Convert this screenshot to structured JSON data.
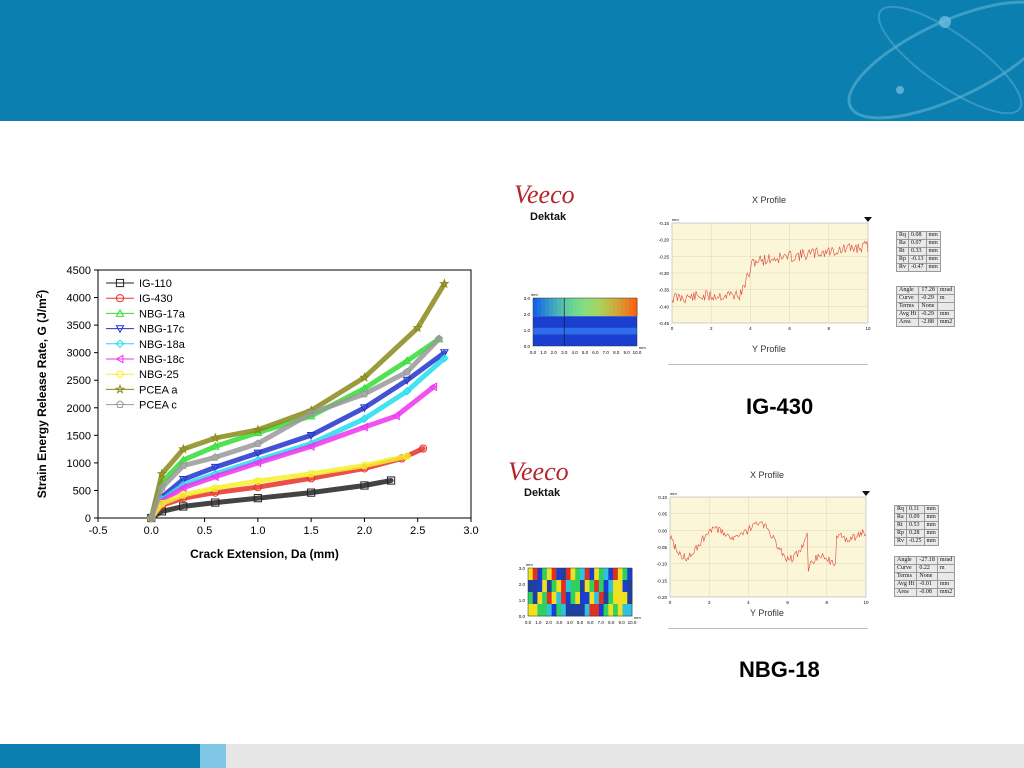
{
  "chart_data": {
    "type": "scatter",
    "xlabel": "Crack Extension, Da (mm)",
    "ylabel": "Strain Energy Release Rate, G (J/m",
    "ylabel_sup": "2",
    "ylabel_close": ")",
    "xlim": [
      -0.5,
      3.0
    ],
    "ylim": [
      0,
      4500
    ],
    "xticks": [
      "-0.5",
      "0.0",
      "0.5",
      "1.0",
      "1.5",
      "2.0",
      "2.5",
      "3.0"
    ],
    "yticks": [
      "0",
      "500",
      "1000",
      "1500",
      "2000",
      "2500",
      "3000",
      "3500",
      "4000",
      "4500"
    ],
    "legend_position": "top-left",
    "grid": false,
    "series": [
      {
        "name": "IG-110",
        "color": "#222222",
        "marker": "square",
        "x": [
          0,
          0.1,
          0.3,
          0.6,
          1.0,
          1.5,
          2.0,
          2.25
        ],
        "y": [
          0,
          120,
          210,
          280,
          360,
          460,
          590,
          680
        ]
      },
      {
        "name": "IG-430",
        "color": "#e8302a",
        "marker": "circle",
        "x": [
          0,
          0.1,
          0.3,
          0.6,
          1.0,
          1.5,
          2.0,
          2.35,
          2.55
        ],
        "y": [
          0,
          230,
          360,
          460,
          560,
          720,
          900,
          1080,
          1260
        ]
      },
      {
        "name": "NBG-17a",
        "color": "#33dd33",
        "marker": "triangle-up",
        "x": [
          0,
          0.1,
          0.3,
          0.6,
          1.0,
          1.5,
          2.0,
          2.4,
          2.7
        ],
        "y": [
          0,
          650,
          1050,
          1300,
          1550,
          1850,
          2350,
          2850,
          3250
        ]
      },
      {
        "name": "NBG-17c",
        "color": "#2233cc",
        "marker": "triangle-down",
        "x": [
          0,
          0.1,
          0.3,
          0.6,
          1.0,
          1.5,
          2.0,
          2.4,
          2.75
        ],
        "y": [
          0,
          380,
          700,
          920,
          1180,
          1500,
          2000,
          2500,
          3000
        ]
      },
      {
        "name": "NBG-18a",
        "color": "#22ddee",
        "marker": "diamond",
        "x": [
          0,
          0.1,
          0.3,
          0.6,
          1.0,
          1.5,
          2.0,
          2.4,
          2.75
        ],
        "y": [
          0,
          330,
          600,
          800,
          1050,
          1350,
          1800,
          2300,
          2900
        ]
      },
      {
        "name": "NBG-18c",
        "color": "#ee33ee",
        "marker": "triangle-left",
        "x": [
          0,
          0.1,
          0.3,
          0.6,
          1.0,
          1.5,
          2.0,
          2.3,
          2.65
        ],
        "y": [
          0,
          300,
          550,
          750,
          1000,
          1300,
          1650,
          1850,
          2380
        ]
      },
      {
        "name": "NBG-25",
        "color": "#f5f02a",
        "marker": "hexagon",
        "x": [
          0,
          0.1,
          0.3,
          0.6,
          1.0,
          1.5,
          2.0,
          2.4
        ],
        "y": [
          0,
          260,
          420,
          540,
          670,
          800,
          950,
          1120
        ]
      },
      {
        "name": "PCEA a",
        "color": "#8a8a1a",
        "marker": "star",
        "x": [
          0,
          0.1,
          0.3,
          0.6,
          1.0,
          1.5,
          2.0,
          2.5,
          2.75
        ],
        "y": [
          0,
          800,
          1250,
          1450,
          1600,
          1950,
          2550,
          3450,
          4250
        ]
      },
      {
        "name": "PCEA c",
        "color": "#999999",
        "marker": "pentagon",
        "x": [
          0,
          0.1,
          0.3,
          0.6,
          1.0,
          1.5,
          2.0,
          2.4,
          2.7
        ],
        "y": [
          0,
          550,
          950,
          1100,
          1350,
          1900,
          2250,
          2650,
          3250
        ]
      }
    ]
  },
  "panels": [
    {
      "logo": "Veeco",
      "sublogo": "Dektak",
      "x_profile_title": "X Profile",
      "y_profile_title": "Y Profile",
      "label": "IG-430",
      "axis_unit": "mm",
      "map_x_ticks": [
        "0.0",
        "1.0",
        "2.0",
        "3.0",
        "4.0",
        "5.0",
        "6.0",
        "7.0",
        "8.0",
        "9.0",
        "10.0"
      ],
      "map_y_ticks": [
        "3.0",
        "2.0",
        "1.0",
        "0.0"
      ],
      "profile_y_ticks": [
        "-0.15",
        "-0.20",
        "-0.25",
        "-0.30",
        "-0.35",
        "-0.40",
        "-0.45"
      ],
      "profile_x_ticks": [
        "0",
        "2",
        "4",
        "6",
        "8",
        "10"
      ],
      "roughness": [
        [
          "Rq",
          "0.08",
          "mm"
        ],
        [
          "Ra",
          "0.07",
          "mm"
        ],
        [
          "Rt",
          "0.33",
          "mm"
        ],
        [
          "Rp",
          "-0.13",
          "mm"
        ],
        [
          "Rv",
          "-0.47",
          "mm"
        ]
      ],
      "form": [
        [
          "Angle",
          "17.28",
          "mrad"
        ],
        [
          "Curve",
          "-0.29",
          "m"
        ],
        [
          "Terms",
          "None",
          ""
        ],
        [
          "Avg Ht",
          "-0.29",
          "mm"
        ],
        [
          "Area",
          "-2.88",
          "mm2"
        ]
      ]
    },
    {
      "logo": "Veeco",
      "sublogo": "Dektak",
      "x_profile_title": "X Profile",
      "y_profile_title": "Y Profile",
      "label": "NBG-18",
      "axis_unit": "mm",
      "map_x_ticks": [
        "0.0",
        "1.0",
        "2.0",
        "3.0",
        "4.0",
        "5.0",
        "6.0",
        "7.0",
        "8.0",
        "9.0",
        "10.0"
      ],
      "map_y_ticks": [
        "3.0",
        "2.0",
        "1.0",
        "0.0"
      ],
      "profile_y_ticks": [
        "0.10",
        "0.05",
        "0.00",
        "-0.05",
        "-0.10",
        "-0.15",
        "-0.20"
      ],
      "profile_x_ticks": [
        "0",
        "2",
        "4",
        "6",
        "8",
        "10"
      ],
      "roughness": [
        [
          "Rq",
          "0.11",
          "mm"
        ],
        [
          "Ra",
          "0.09",
          "mm"
        ],
        [
          "Rt",
          "0.53",
          "mm"
        ],
        [
          "Rp",
          "0.28",
          "mm"
        ],
        [
          "Rv",
          "-0.25",
          "mm"
        ]
      ],
      "form": [
        [
          "Angle",
          "-27.18",
          "mrad"
        ],
        [
          "Curve",
          "0.22",
          "m"
        ],
        [
          "Terms",
          "None",
          ""
        ],
        [
          "Avg Ht",
          "-0.01",
          "mm"
        ],
        [
          "Area",
          "-0.08",
          "mm2"
        ]
      ]
    }
  ]
}
